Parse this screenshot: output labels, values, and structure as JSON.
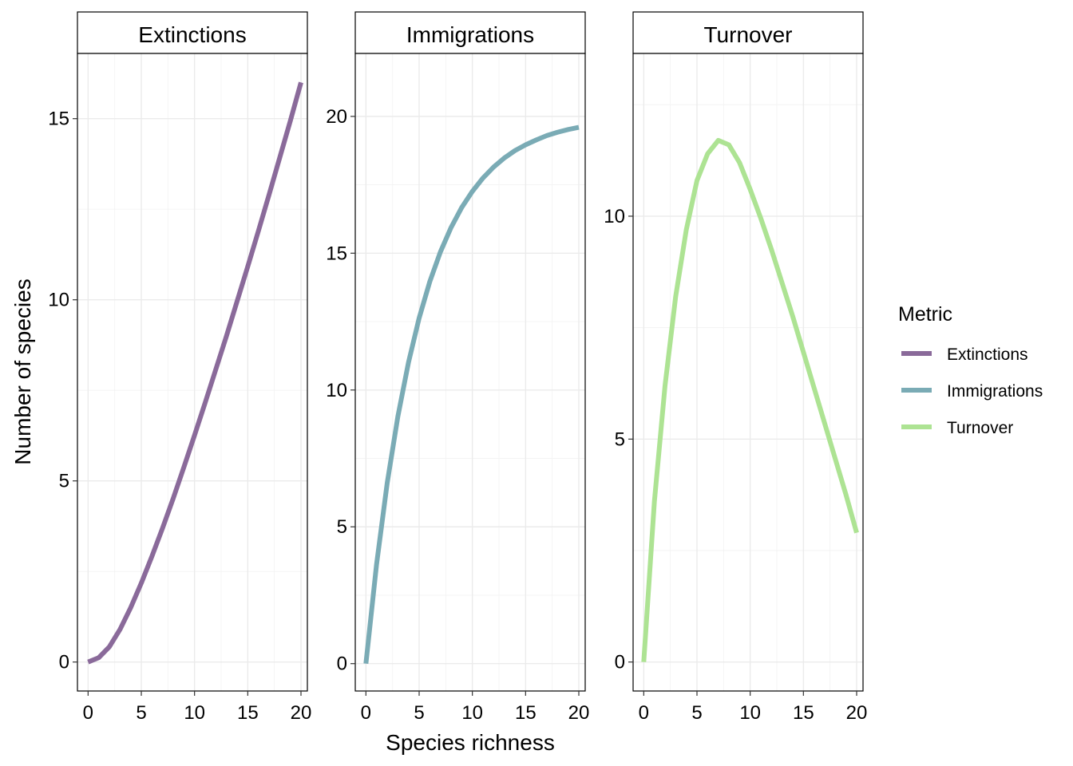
{
  "chart_data": {
    "type": "line",
    "layout": "facet_wrap",
    "xlabel": "Species richness",
    "ylabel": "Number of species",
    "legend": {
      "title": "Metric",
      "position": "right",
      "entries": [
        {
          "label": "Extinctions",
          "color": "#8a6a9a"
        },
        {
          "label": "Immigrations",
          "color": "#7aabb5"
        },
        {
          "label": "Turnover",
          "color": "#ade393"
        }
      ]
    },
    "x": [
      0,
      1,
      2,
      3,
      4,
      5,
      6,
      7,
      8,
      9,
      10,
      11,
      12,
      13,
      14,
      15,
      16,
      17,
      18,
      19,
      20
    ],
    "xlim": [
      -1,
      20.6
    ],
    "x_ticks": [
      0,
      5,
      10,
      15,
      20
    ],
    "x_tick_labels": [
      "0",
      "5",
      "10",
      "15",
      "20"
    ],
    "grid": true,
    "panels": [
      {
        "strip": "Extinctions",
        "color": "#8a6a9a",
        "ylim": [
          -0.8,
          16.8
        ],
        "y_ticks": [
          0,
          5,
          10,
          15
        ],
        "y_tick_labels": [
          "0",
          "5",
          "10",
          "15"
        ],
        "values": [
          0,
          0.12,
          0.42,
          0.9,
          1.5,
          2.18,
          2.92,
          3.7,
          4.52,
          5.38,
          6.26,
          7.16,
          8.08,
          9.0,
          9.96,
          10.92,
          11.9,
          12.9,
          13.92,
          14.94,
          16.0
        ]
      },
      {
        "strip": "Immigrations",
        "color": "#7aabb5",
        "ylim": [
          -1.0,
          22.3
        ],
        "y_ticks": [
          0,
          5,
          10,
          15,
          20
        ],
        "y_tick_labels": [
          "0",
          "5",
          "10",
          "15",
          "20"
        ],
        "values": [
          0,
          3.63,
          6.6,
          9.03,
          11.01,
          12.63,
          13.96,
          15.05,
          15.94,
          16.67,
          17.26,
          17.75,
          18.15,
          18.48,
          18.75,
          18.96,
          19.14,
          19.3,
          19.42,
          19.52,
          19.6
        ]
      },
      {
        "strip": "Turnover",
        "color": "#ade393",
        "ylim": [
          -0.65,
          13.65
        ],
        "y_ticks": [
          0,
          5,
          10
        ],
        "y_tick_labels": [
          "0",
          "5",
          "10"
        ],
        "values": [
          0,
          3.6,
          6.2,
          8.2,
          9.7,
          10.8,
          11.4,
          11.7,
          11.6,
          11.2,
          10.6,
          9.95,
          9.25,
          8.5,
          7.75,
          6.95,
          6.15,
          5.35,
          4.55,
          3.75,
          2.9
        ]
      }
    ]
  }
}
